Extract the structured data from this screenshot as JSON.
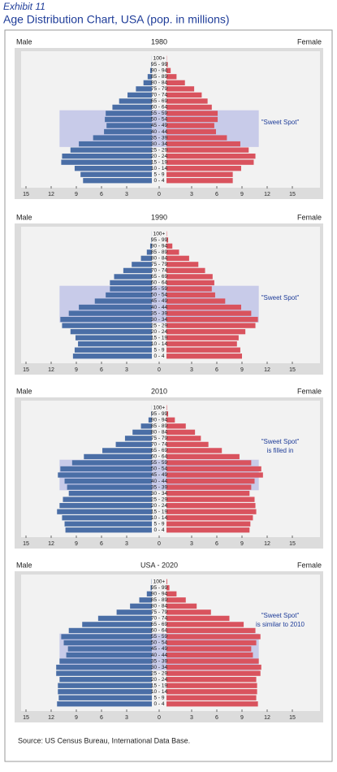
{
  "header": {
    "exhibit": "Exhibit 11",
    "title": "Age Distribution Chart, USA (pop. in millions)"
  },
  "source": "Source: US Census Bureau, International Data Base.",
  "chart_data": [
    {
      "type": "pyramid",
      "title": "1980",
      "categories": [
        "0 - 4",
        "5 - 9",
        "10 - 14",
        "15 - 19",
        "20 - 24",
        "25 - 29",
        "30 - 34",
        "35 - 39",
        "40 - 44",
        "45 - 49",
        "50 - 54",
        "55 - 59",
        "60 - 64",
        "65 - 69",
        "70 - 74",
        "75 - 79",
        "80 - 84",
        "85 - 89",
        "90 - 94",
        "95 - 99",
        "100+"
      ],
      "series": [
        {
          "name": "Male",
          "color": "#4a6ea6",
          "values": [
            8.2,
            8.5,
            9.2,
            10.8,
            10.7,
            9.7,
            8.7,
            7.0,
            5.7,
            5.4,
            5.6,
            5.5,
            4.7,
            3.9,
            2.9,
            1.9,
            1.0,
            0.5,
            0.2,
            0.05,
            0.01
          ]
        },
        {
          "name": "Female",
          "color": "#d9535e",
          "values": [
            7.9,
            7.9,
            8.9,
            10.4,
            10.6,
            9.8,
            8.8,
            7.2,
            5.9,
            5.7,
            6.1,
            6.1,
            5.4,
            4.9,
            4.2,
            3.3,
            2.2,
            1.2,
            0.5,
            0.15,
            0.03
          ]
        }
      ],
      "xlim": [
        0,
        15
      ],
      "xticks": [
        0,
        3,
        6,
        9,
        12,
        15
      ],
      "sweet_spot": {
        "label": [
          "\"Sweet Spot\""
        ],
        "from": "30 - 34",
        "to": "55 - 59",
        "extent": 11,
        "color": "#c8cbe9"
      }
    },
    {
      "type": "pyramid",
      "title": "1990",
      "categories": [
        "0 - 4",
        "5 - 9",
        "10 - 14",
        "15 - 19",
        "20 - 24",
        "25 - 29",
        "30 - 34",
        "35 - 39",
        "40 - 44",
        "45 - 49",
        "50 - 54",
        "55 - 59",
        "60 - 64",
        "65 - 69",
        "70 - 74",
        "75 - 79",
        "80 - 84",
        "85 - 89",
        "90 - 94",
        "95 - 99",
        "100+"
      ],
      "series": [
        {
          "name": "Male",
          "color": "#4a6ea6",
          "values": [
            9.4,
            9.2,
            8.8,
            9.1,
            9.7,
            10.7,
            10.9,
            9.9,
            8.7,
            6.8,
            5.5,
            5.0,
            5.0,
            4.5,
            3.4,
            2.4,
            1.3,
            0.6,
            0.2,
            0.05,
            0.01
          ]
        },
        {
          "name": "Female",
          "color": "#d9535e",
          "values": [
            9.0,
            8.8,
            8.4,
            8.6,
            9.4,
            10.6,
            10.9,
            10.1,
            8.9,
            7.0,
            5.8,
            5.4,
            5.7,
            5.5,
            4.6,
            3.8,
            2.7,
            1.5,
            0.7,
            0.2,
            0.04
          ]
        }
      ],
      "xlim": [
        0,
        15
      ],
      "xticks": [
        0,
        3,
        6,
        9,
        12,
        15
      ],
      "sweet_spot": {
        "label": [
          "\"Sweet Spot\""
        ],
        "from": "30 - 34",
        "to": "55 - 59",
        "extent": 11,
        "color": "#c8cbe9"
      }
    },
    {
      "type": "pyramid",
      "title": "2010",
      "categories": [
        "0 - 4",
        "5 - 9",
        "10 - 14",
        "15 - 19",
        "20 - 24",
        "25 - 29",
        "30 - 34",
        "35 - 39",
        "40 - 44",
        "45 - 49",
        "50 - 54",
        "55 - 59",
        "60 - 64",
        "65 - 69",
        "70 - 74",
        "75 - 79",
        "80 - 84",
        "85 - 89",
        "90 - 94",
        "95 - 99",
        "100+"
      ],
      "series": [
        {
          "name": "Male",
          "color": "#4a6ea6",
          "values": [
            10.3,
            10.4,
            10.7,
            11.3,
            11.0,
            10.6,
            9.9,
            10.1,
            10.4,
            11.2,
            10.9,
            9.5,
            8.1,
            5.9,
            4.3,
            3.2,
            2.3,
            1.3,
            0.4,
            0.07,
            0.01
          ]
        },
        {
          "name": "Female",
          "color": "#d9535e",
          "values": [
            9.9,
            10.0,
            10.3,
            10.7,
            10.6,
            10.5,
            9.9,
            10.1,
            10.5,
            11.5,
            11.3,
            10.1,
            8.7,
            6.6,
            5.0,
            4.1,
            3.4,
            2.3,
            1.0,
            0.2,
            0.05
          ]
        }
      ],
      "xlim": [
        0,
        15
      ],
      "xticks": [
        0,
        3,
        6,
        9,
        12,
        15
      ],
      "sweet_spot": {
        "label": [
          "\"Sweet Spot\"",
          "is filled in"
        ],
        "from": "35 - 39",
        "to": "55 - 59",
        "extent": 11,
        "color": "#c8cbe9"
      }
    },
    {
      "type": "pyramid",
      "title": "USA - 2020",
      "categories": [
        "0 - 4",
        "5 - 9",
        "10 - 14",
        "15 - 19",
        "20 - 24",
        "25 - 29",
        "30 - 34",
        "35 - 39",
        "40 - 44",
        "45 - 49",
        "50 - 54",
        "55 - 59",
        "60 - 64",
        "65 - 69",
        "70 - 74",
        "75 - 79",
        "80 - 84",
        "85 - 89",
        "90 - 94",
        "95 - 99",
        "100+"
      ],
      "series": [
        {
          "name": "Male",
          "color": "#4a6ea6",
          "values": [
            11.3,
            11.1,
            11.2,
            11.2,
            11.0,
            11.4,
            11.4,
            11.0,
            10.2,
            10.0,
            10.5,
            10.8,
            9.9,
            8.3,
            6.4,
            4.2,
            2.6,
            1.5,
            0.6,
            0.15,
            0.03
          ]
        },
        {
          "name": "Female",
          "color": "#d9535e",
          "values": [
            10.9,
            10.7,
            10.8,
            10.8,
            10.7,
            11.2,
            11.3,
            11.0,
            10.3,
            10.1,
            10.7,
            11.2,
            10.6,
            9.2,
            7.5,
            5.3,
            3.6,
            2.3,
            1.2,
            0.35,
            0.08
          ]
        }
      ],
      "xlim": [
        0,
        15
      ],
      "xticks": [
        0,
        3,
        6,
        9,
        12,
        15
      ],
      "sweet_spot": {
        "label": [
          "\"Sweet Spot\"",
          "is similar to 2010"
        ],
        "from": "30 - 34",
        "to": "55 - 59",
        "extent": 11,
        "color": "#c8cbe9"
      }
    }
  ]
}
